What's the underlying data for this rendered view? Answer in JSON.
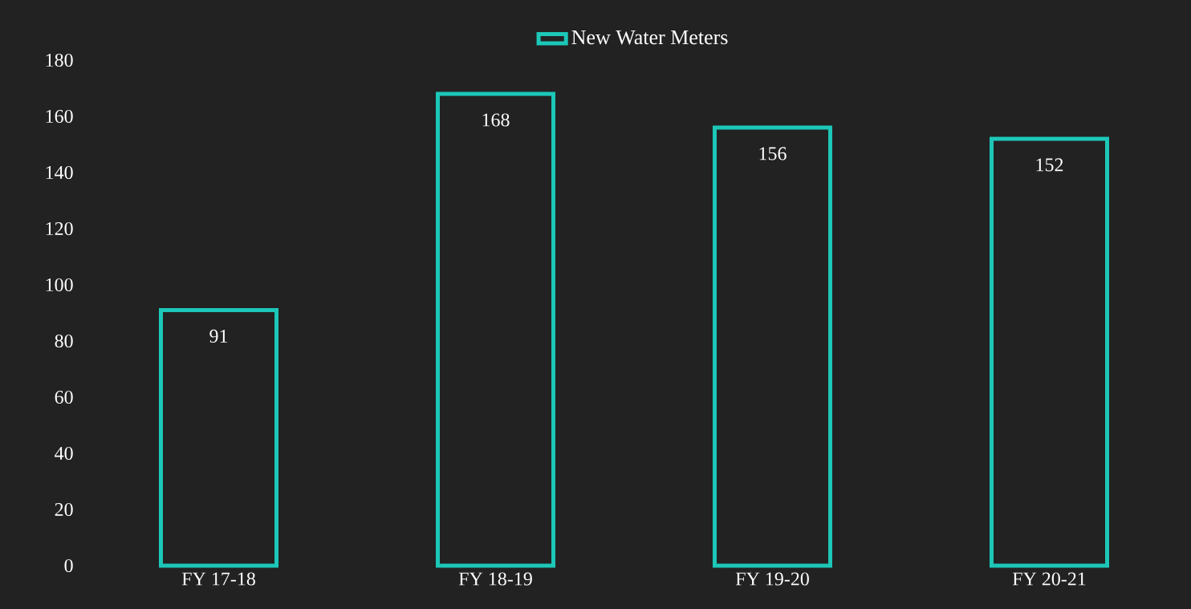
{
  "chart_data": {
    "type": "bar",
    "categories": [
      "FY 17-18",
      "FY 18-19",
      "FY 19-20",
      "FY 20-21"
    ],
    "series": [
      {
        "name": "New Water Meters",
        "color": "#1cc7b8",
        "values": [
          91,
          168,
          156,
          152
        ]
      }
    ],
    "ylim": [
      0,
      180
    ],
    "yticks": [
      0,
      20,
      40,
      60,
      80,
      100,
      120,
      140,
      160,
      180
    ],
    "data_labels": true,
    "legend": "top",
    "grid": false
  }
}
